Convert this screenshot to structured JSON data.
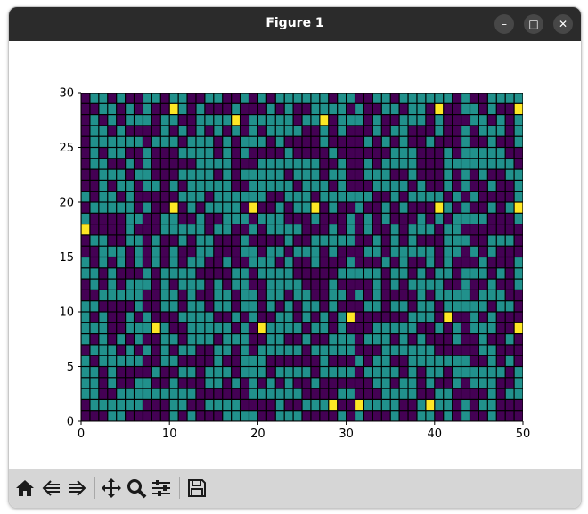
{
  "window": {
    "title": "Figure 1"
  },
  "controls": {
    "minimize": "–",
    "maximize": "□",
    "close": "✕"
  },
  "toolbar": {
    "buttons": [
      {
        "name": "home",
        "icon": "home-icon"
      },
      {
        "name": "back",
        "icon": "back-arrow-icon"
      },
      {
        "name": "forward",
        "icon": "forward-arrow-icon"
      },
      {
        "name": "pan",
        "icon": "move-icon"
      },
      {
        "name": "zoom",
        "icon": "magnifier-icon"
      },
      {
        "name": "configure",
        "icon": "sliders-icon"
      },
      {
        "name": "save",
        "icon": "floppy-icon"
      }
    ]
  },
  "chart_data": {
    "type": "heatmap",
    "description_colors": {
      "low": "#440154",
      "mid": "#21918c",
      "high": "#fde725",
      "edge": "#000000"
    },
    "xlim": [
      0,
      50
    ],
    "ylim": [
      0,
      30
    ],
    "x_ticks": [
      0,
      10,
      20,
      30,
      40,
      50
    ],
    "y_ticks": [
      0,
      5,
      10,
      15,
      20,
      25,
      30
    ],
    "levels": [
      0,
      1,
      2
    ],
    "grid_rows_bottom_to_top": [
      "00011000001010001111001110000101000100110101001000",
      "01111110001100111100001001112002111100121101011000",
      "11001111111110000001111110000110001111001100001011",
      "11010011001000110101010100100000011011010010111001",
      "11010000100110111011101111011110111101011011111101",
      "10111110011000010011100000010001011001111111001010",
      "01110101010110011010111110111110001111110000011000",
      "10101010011011101110011001001110111010100010010010",
      "11100111210011111010211110110100011111001010111002",
      "10100101000111100101001101010120000001110200101000",
      "11000010011011011011010101101000110110110111110110",
      "00111110011010011011011011001101010000101111011100",
      "01010111010111010110011110001000010101111001001001",
      "11010001011110000110111100000111110110101101110101",
      "10101010101011001001110100100010001010010100010001",
      "00111010101001100011011011101000110111110110101000",
      "01100110100101100010000100111110010101000111001110",
      "20000100011111011001011110001010100101110110000000",
      "10000110011001001110111000100010101000101011110001",
      "01111101002010111102001011201001001010002101001012",
      "10110100000111011111100111011111100101111010100001",
      "00101101101011111001111101110100011110100101001001",
      "00111011000111101011111011101100111001000101010011",
      "01100101000001111000111111100100101111000111111110",
      "01011001000111101010000100001000000111000101111100",
      "01111110111011101011101000010000101010010001001001",
      "01101000010101010101011110010100010110001001011101",
      "01010111011001111201111101120111010011101000110101",
      "00110101002101000100010100111101001101102001101002",
      "01101001101100110010101111110110011011111101001111"
    ]
  }
}
